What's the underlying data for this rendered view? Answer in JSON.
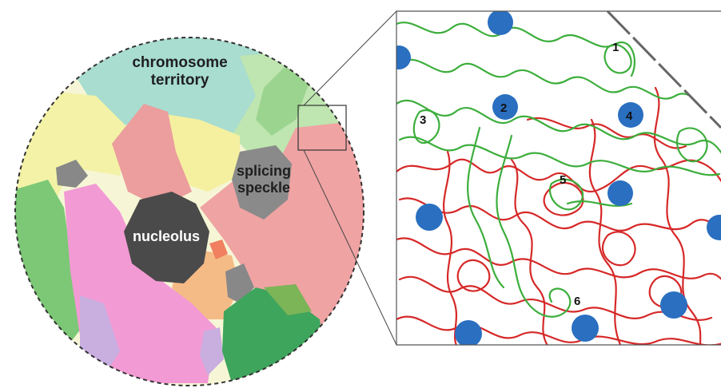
{
  "nucleus": {
    "labels": {
      "territory_line1": "chromosome",
      "territory_line2": "territory",
      "speckle_line1": "splicing",
      "speckle_line2": "speckle",
      "nucleolus": "nucleolus"
    }
  },
  "zoom": {
    "loop_numbers": [
      "1",
      "2",
      "3",
      "4",
      "5",
      "6"
    ]
  },
  "colors": {
    "green_chain": "#3cae3c",
    "red_chain": "#d62828",
    "anchor": "#2a6fc0",
    "territory_teal": "#a8ddd0",
    "territory_yellow": "#f3f2a6",
    "territory_salmon": "#f0a3a3",
    "territory_pink": "#f29ad4",
    "territory_green": "#7cc876",
    "nucleolus_dark": "#4a4a4a",
    "speckle_gray": "#8a8a8a"
  }
}
